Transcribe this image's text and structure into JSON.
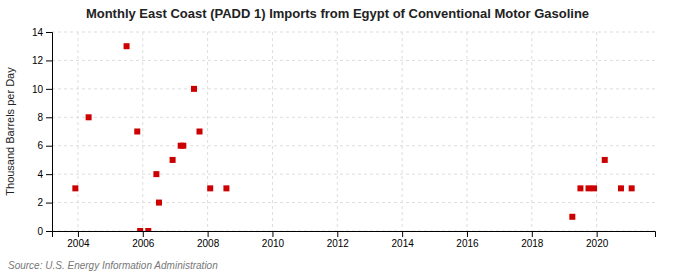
{
  "chart_data": {
    "type": "scatter",
    "title": "Monthly East Coast (PADD 1) Imports from Egypt of Conventional Motor Gasoline",
    "y_label": "Thousand Barrels per Day",
    "annotations": [
      "Source: U.S. Energy Information Administration"
    ],
    "color": "#cc0000",
    "marker": "square",
    "grid": true,
    "xlim": [
      2003.2,
      2021.8
    ],
    "ylim": [
      0,
      14
    ],
    "xticks": [
      2004,
      2006,
      2008,
      2010,
      2012,
      2014,
      2016,
      2018,
      2020
    ],
    "yticks": [
      0,
      2,
      4,
      6,
      8,
      10,
      12,
      14
    ],
    "x": [
      2003.92,
      2004.33,
      2005.5,
      2005.83,
      2005.92,
      2006.17,
      2006.42,
      2006.5,
      2006.92,
      2007.17,
      2007.25,
      2007.58,
      2007.75,
      2008.08,
      2008.58,
      2019.25,
      2019.5,
      2019.75,
      2019.92,
      2020.25,
      2020.75,
      2021.08
    ],
    "values": [
      3,
      8,
      13,
      7,
      0,
      0,
      4,
      2,
      5,
      6,
      6,
      10,
      7,
      3,
      3,
      1,
      3,
      3,
      3,
      5,
      3,
      3
    ]
  }
}
